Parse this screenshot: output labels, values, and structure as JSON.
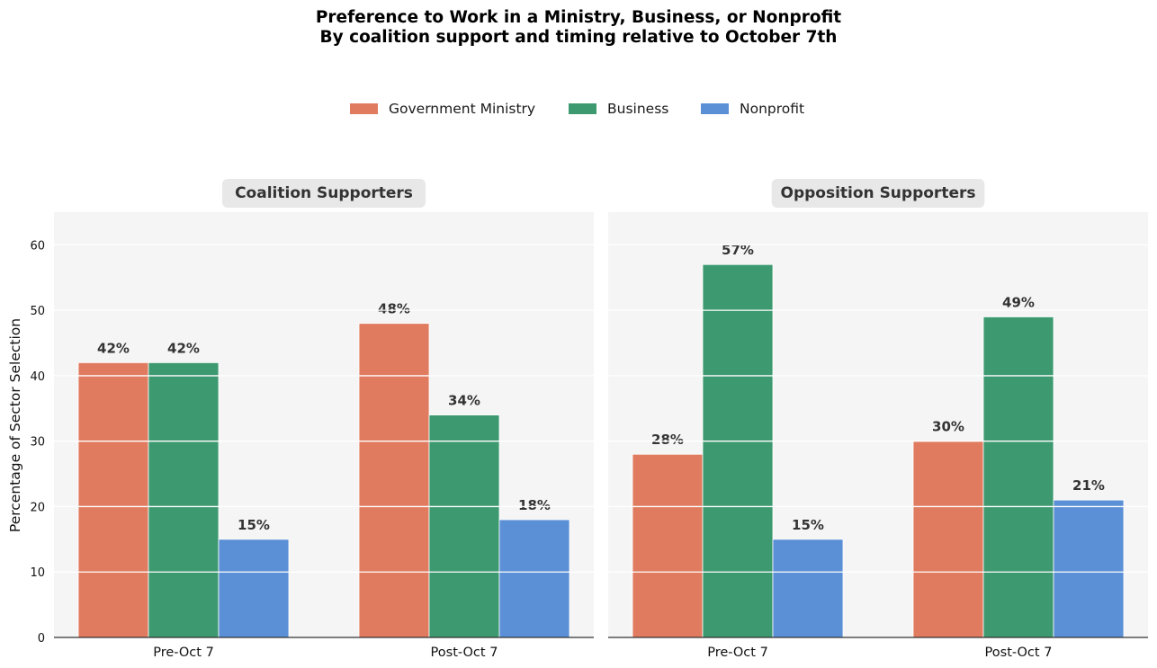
{
  "title_line1": "Preference to Work in a Ministry, Business, or Nonprofit",
  "title_line2": "By coalition support and timing relative to October 7th",
  "chart_data": {
    "type": "bar",
    "ylabel": "Percentage of Sector Selection",
    "ylim": [
      0,
      65
    ],
    "yticks": [
      0,
      10,
      20,
      30,
      40,
      50,
      60
    ],
    "grid": true,
    "legend_position": "top-center",
    "categories": [
      "Pre-Oct 7",
      "Post-Oct 7"
    ],
    "series_meta": [
      {
        "name": "Government Ministry",
        "color": "#e07b5f"
      },
      {
        "name": "Business",
        "color": "#3d9970"
      },
      {
        "name": "Nonprofit",
        "color": "#5b8fd6"
      }
    ],
    "panels": [
      {
        "title": "Coalition Supporters",
        "series": [
          {
            "name": "Government Ministry",
            "values": [
              42,
              48
            ],
            "labels": [
              "42%",
              "48%"
            ]
          },
          {
            "name": "Business",
            "values": [
              42,
              34
            ],
            "labels": [
              "42%",
              "34%"
            ]
          },
          {
            "name": "Nonprofit",
            "values": [
              15,
              18
            ],
            "labels": [
              "15%",
              "18%"
            ]
          }
        ]
      },
      {
        "title": "Opposition Supporters",
        "series": [
          {
            "name": "Government Ministry",
            "values": [
              28,
              30
            ],
            "labels": [
              "28%",
              "30%"
            ]
          },
          {
            "name": "Business",
            "values": [
              57,
              49
            ],
            "labels": [
              "57%",
              "49%"
            ]
          },
          {
            "name": "Nonprofit",
            "values": [
              15,
              21
            ],
            "labels": [
              "15%",
              "21%"
            ]
          }
        ]
      }
    ]
  }
}
